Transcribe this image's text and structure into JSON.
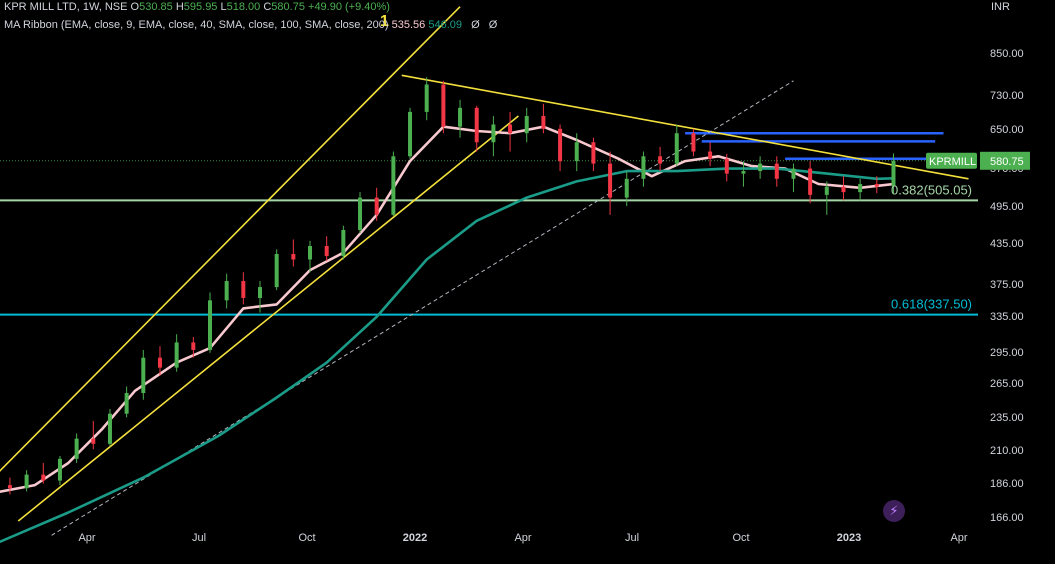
{
  "legend": {
    "title": "KPR MILL LTD, 1W, NSE",
    "o_key": "O",
    "o_val": "530.85",
    "h_key": "H",
    "h_val": "595.95",
    "l_key": "L",
    "l_val": "518.00",
    "c_key": "C",
    "c_val": "580.75",
    "change": "+49.90 (+9.40%)",
    "ribbon_label": "MA Ribbon (EMA, close, 9, EMA, close, 40, SMA, close, 100, SMA, close, 200)",
    "ribbon_v1": "535.56",
    "ribbon_v2": "546.09",
    "eye1": "Ø",
    "eye2": "Ø"
  },
  "currency": "INR",
  "wave_label": "1",
  "flash_icon": "lightning-icon",
  "colors": {
    "background": "#000000",
    "up": "#4caf50",
    "down": "#f23645",
    "ema9": "#f8c8cf",
    "ema40": "#1a9c88",
    "trend": "#f3e03c",
    "support": "#a5d6a7",
    "fib": "#00bcd4",
    "resistance": "#2962ff",
    "axis_text": "#d1d4dc"
  },
  "chart_data": {
    "type": "candlestick",
    "symbol": "KPRMILL",
    "timeframe": "1W",
    "y_scale": "log",
    "y_range": [
      155,
      990
    ],
    "y_ticks": [
      "850.00",
      "730.00",
      "650.00",
      "570.00",
      "495.00",
      "435.00",
      "375.00",
      "335.00",
      "295.00",
      "265.00",
      "235.00",
      "210.00",
      "186.00",
      "166.00"
    ],
    "x_ticks": [
      "Apr",
      "Jul",
      "Oct",
      "2022",
      "Apr",
      "Jul",
      "Oct",
      "2023",
      "Apr"
    ],
    "x_tick_dates": [
      "2021-04-01",
      "2021-07-01",
      "2021-10-01",
      "2022-01-01",
      "2022-04-01",
      "2022-07-01",
      "2022-10-01",
      "2023-01-01",
      "2023-04-01"
    ],
    "x_range": [
      "2021-01-11",
      "2023-05-01"
    ],
    "last_price": {
      "label": "KPRMILL",
      "value": "580.75"
    },
    "fib_levels": [
      {
        "label": "0.382(505.05)",
        "value": 505.05
      },
      {
        "label": "0.618(337.50)",
        "value": 337.5
      }
    ],
    "horizontal_lines": [
      {
        "name": "support",
        "value": 505.05
      },
      {
        "name": "fib-618",
        "value": 337.5
      },
      {
        "name": "resistance-1",
        "value": 640,
        "from": "2022-08-15",
        "to": "2023-03-20"
      },
      {
        "name": "resistance-2",
        "value": 622,
        "from": "2022-08-29",
        "to": "2023-03-13"
      },
      {
        "name": "resistance-3",
        "value": 585,
        "from": "2022-11-07",
        "to": "2023-03-06"
      }
    ],
    "trendlines": [
      {
        "name": "channel-upper",
        "style": "solid",
        "from": [
          "2021-01-11",
          190
        ],
        "to": [
          "2022-02-07",
          1000
        ]
      },
      {
        "name": "channel-lower",
        "style": "solid",
        "from": [
          "2021-02-01",
          163
        ],
        "to": [
          "2022-03-28",
          680
        ]
      },
      {
        "name": "descending-resistance",
        "style": "solid",
        "from": [
          "2021-12-20",
          785
        ],
        "to": [
          "2023-04-10",
          545
        ]
      },
      {
        "name": "dotted-support",
        "style": "dashed",
        "from": [
          "2021-03-01",
          155
        ],
        "to": [
          "2022-11-14",
          770
        ]
      }
    ],
    "series": [
      {
        "name": "EMA 9",
        "points": [
          [
            "2021-01-11",
            180
          ],
          [
            "2021-02-15",
            185
          ],
          [
            "2021-03-15",
            200
          ],
          [
            "2021-04-12",
            225
          ],
          [
            "2021-05-10",
            258
          ],
          [
            "2021-06-14",
            285
          ],
          [
            "2021-07-12",
            300
          ],
          [
            "2021-08-09",
            345
          ],
          [
            "2021-09-06",
            350
          ],
          [
            "2021-10-04",
            395
          ],
          [
            "2021-11-01",
            420
          ],
          [
            "2021-11-29",
            480
          ],
          [
            "2021-12-27",
            580
          ],
          [
            "2022-01-24",
            655
          ],
          [
            "2022-02-21",
            645
          ],
          [
            "2022-03-21",
            640
          ],
          [
            "2022-04-18",
            655
          ],
          [
            "2022-05-16",
            625
          ],
          [
            "2022-06-20",
            585
          ],
          [
            "2022-07-18",
            550
          ],
          [
            "2022-08-15",
            580
          ],
          [
            "2022-09-12",
            590
          ],
          [
            "2022-10-10",
            570
          ],
          [
            "2022-11-07",
            565
          ],
          [
            "2022-12-05",
            535
          ],
          [
            "2023-01-09",
            528
          ],
          [
            "2023-02-06",
            535
          ]
        ]
      },
      {
        "name": "EMA 40",
        "points": [
          [
            "2021-01-11",
            150
          ],
          [
            "2021-03-15",
            168
          ],
          [
            "2021-05-17",
            190
          ],
          [
            "2021-07-19",
            220
          ],
          [
            "2021-09-06",
            252
          ],
          [
            "2021-10-18",
            285
          ],
          [
            "2021-11-29",
            335
          ],
          [
            "2022-01-10",
            410
          ],
          [
            "2022-02-21",
            470
          ],
          [
            "2022-04-04",
            510
          ],
          [
            "2022-05-16",
            540
          ],
          [
            "2022-06-27",
            560
          ],
          [
            "2022-08-08",
            560
          ],
          [
            "2022-09-19",
            565
          ],
          [
            "2022-10-31",
            565
          ],
          [
            "2022-12-12",
            555
          ],
          [
            "2023-01-23",
            545
          ],
          [
            "2023-02-06",
            546
          ]
        ]
      }
    ],
    "candles": [
      [
        "2021-01-11",
        180,
        188,
        178,
        185
      ],
      [
        "2021-01-25",
        185,
        190,
        179,
        183
      ],
      [
        "2021-02-08",
        183,
        195,
        181,
        192
      ],
      [
        "2021-02-22",
        192,
        200,
        186,
        188
      ],
      [
        "2021-03-08",
        188,
        205,
        185,
        203
      ],
      [
        "2021-03-22",
        203,
        222,
        200,
        218
      ],
      [
        "2021-04-05",
        218,
        232,
        210,
        214
      ],
      [
        "2021-04-19",
        214,
        242,
        212,
        238
      ],
      [
        "2021-05-03",
        238,
        262,
        235,
        256
      ],
      [
        "2021-05-17",
        256,
        298,
        250,
        290
      ],
      [
        "2021-05-31",
        290,
        302,
        272,
        280
      ],
      [
        "2021-06-14",
        280,
        315,
        276,
        306
      ],
      [
        "2021-06-28",
        306,
        312,
        290,
        298
      ],
      [
        "2021-07-12",
        298,
        365,
        295,
        355
      ],
      [
        "2021-07-26",
        355,
        390,
        345,
        380
      ],
      [
        "2021-08-09",
        380,
        392,
        350,
        358
      ],
      [
        "2021-08-23",
        358,
        380,
        340,
        372
      ],
      [
        "2021-09-06",
        372,
        425,
        368,
        418
      ],
      [
        "2021-09-20",
        418,
        440,
        400,
        410
      ],
      [
        "2021-10-04",
        410,
        438,
        392,
        430
      ],
      [
        "2021-10-18",
        430,
        445,
        408,
        415
      ],
      [
        "2021-11-01",
        415,
        462,
        410,
        455
      ],
      [
        "2021-11-15",
        455,
        520,
        450,
        510
      ],
      [
        "2021-11-29",
        510,
        528,
        470,
        480
      ],
      [
        "2021-12-13",
        480,
        600,
        478,
        590
      ],
      [
        "2021-12-27",
        590,
        700,
        585,
        690
      ],
      [
        "2022-01-10",
        690,
        780,
        670,
        760
      ],
      [
        "2022-01-24",
        760,
        770,
        640,
        655
      ],
      [
        "2022-02-07",
        655,
        720,
        630,
        700
      ],
      [
        "2022-02-21",
        700,
        705,
        600,
        620
      ],
      [
        "2022-03-07",
        620,
        680,
        590,
        660
      ],
      [
        "2022-03-21",
        660,
        690,
        600,
        640
      ],
      [
        "2022-04-04",
        640,
        700,
        620,
        680
      ],
      [
        "2022-04-18",
        680,
        710,
        640,
        650
      ],
      [
        "2022-05-02",
        650,
        660,
        560,
        580
      ],
      [
        "2022-05-16",
        580,
        640,
        560,
        620
      ],
      [
        "2022-05-30",
        620,
        630,
        560,
        575
      ],
      [
        "2022-06-13",
        575,
        600,
        480,
        510
      ],
      [
        "2022-06-27",
        510,
        560,
        495,
        545
      ],
      [
        "2022-07-11",
        545,
        600,
        530,
        590
      ],
      [
        "2022-07-25",
        590,
        610,
        560,
        575
      ],
      [
        "2022-08-08",
        575,
        660,
        570,
        640
      ],
      [
        "2022-08-22",
        640,
        650,
        590,
        600
      ],
      [
        "2022-09-05",
        600,
        620,
        570,
        585
      ],
      [
        "2022-09-19",
        585,
        595,
        540,
        555
      ],
      [
        "2022-10-03",
        555,
        580,
        530,
        560
      ],
      [
        "2022-10-17",
        560,
        590,
        545,
        575
      ],
      [
        "2022-10-31",
        575,
        590,
        530,
        545
      ],
      [
        "2022-11-14",
        545,
        575,
        520,
        565
      ],
      [
        "2022-11-28",
        565,
        580,
        500,
        515
      ],
      [
        "2022-12-12",
        515,
        540,
        480,
        530
      ],
      [
        "2022-12-26",
        530,
        550,
        505,
        520
      ],
      [
        "2023-01-09",
        520,
        545,
        505,
        535
      ],
      [
        "2023-01-23",
        535,
        550,
        518,
        530
      ],
      [
        "2023-02-06",
        530.85,
        595.95,
        518,
        580.75
      ]
    ]
  }
}
